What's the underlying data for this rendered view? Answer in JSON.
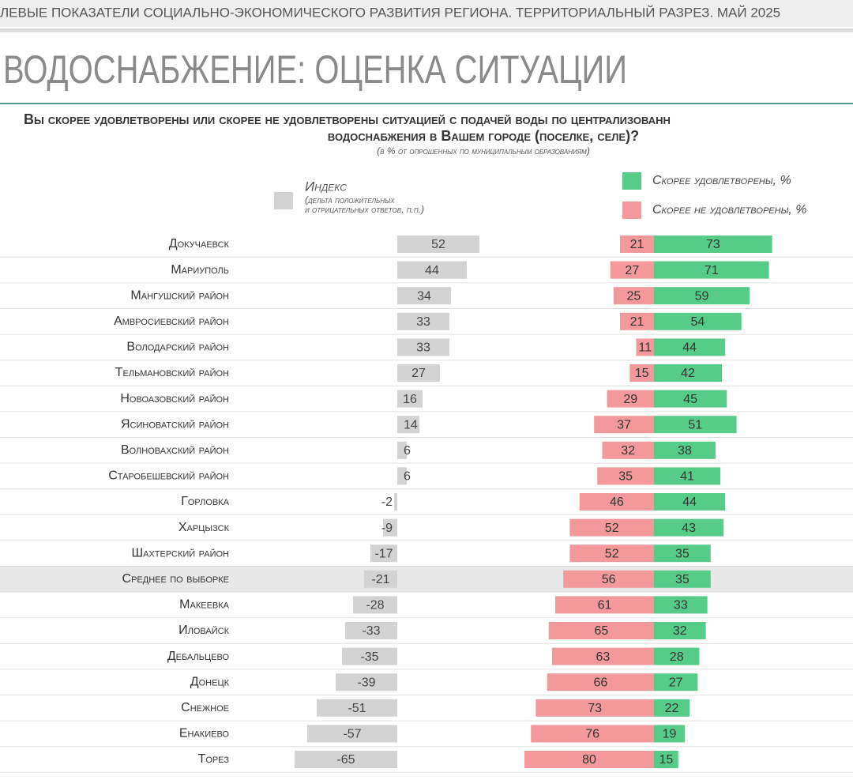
{
  "header": "ЛЕВЫЕ ПОКАЗАТЕЛИ СОЦИАЛЬНО-ЭКОНОМИЧЕСКОГО РАЗВИТИЯ РЕГИОНА. ТЕРРИТОРИАЛЬНЫЙ РАЗРЕЗ. МАЙ 2025",
  "chart_data": {
    "type": "bar",
    "title": "ВОДОСНАБЖЕНИЕ: ОЦЕНКА СИТУАЦИИ",
    "question": [
      "Вы скорее удовлетворены или скорее не удовлетворены ситуацией с подачей воды по централизованн",
      "водоснабжения в Вашем городе (поселке, селе)?"
    ],
    "note": "(в % от опрошенных по муниципальным образованиям)",
    "categories": [
      "Докучаевск",
      "Мариуполь",
      "Мангушский район",
      "Амвросиевский район",
      "Володарский район",
      "Тельмановский район",
      "Новоазовский район",
      "Ясиноватский район",
      "Волновахский район",
      "Старобешевский район",
      "Горловка",
      "Харцызск",
      "Шахтерский район",
      "Среднее по выборке",
      "Макеевка",
      "Иловайск",
      "Дебальцево",
      "Донецк",
      "Снежное",
      "Енакиево",
      "Торез"
    ],
    "highlight_index": 13,
    "xlim": [
      -70,
      60
    ],
    "x2lim": [
      0,
      80
    ],
    "series": [
      {
        "name": "Индекс",
        "description": [
          "(дельта положительных",
          "и отрицательных ответов, п.п.)"
        ],
        "color": "#d3d3d3",
        "values": [
          52,
          44,
          34,
          33,
          33,
          27,
          16,
          14,
          6,
          6,
          -2,
          -9,
          -17,
          -21,
          -28,
          -33,
          -35,
          -39,
          -51,
          -57,
          -65
        ]
      },
      {
        "name": "Скорее не удовлетворены, %",
        "color": "#f4999b",
        "axis": "x2",
        "direction": "left",
        "values": [
          21,
          27,
          25,
          21,
          11,
          15,
          29,
          37,
          32,
          35,
          46,
          52,
          52,
          56,
          61,
          65,
          63,
          66,
          73,
          76,
          80
        ]
      },
      {
        "name": "Скорее удовлетворены, %",
        "color": "#57cc89",
        "axis": "x2",
        "direction": "right",
        "values": [
          73,
          71,
          59,
          54,
          44,
          42,
          45,
          51,
          38,
          41,
          44,
          43,
          35,
          35,
          33,
          32,
          28,
          27,
          22,
          19,
          15
        ]
      }
    ]
  }
}
